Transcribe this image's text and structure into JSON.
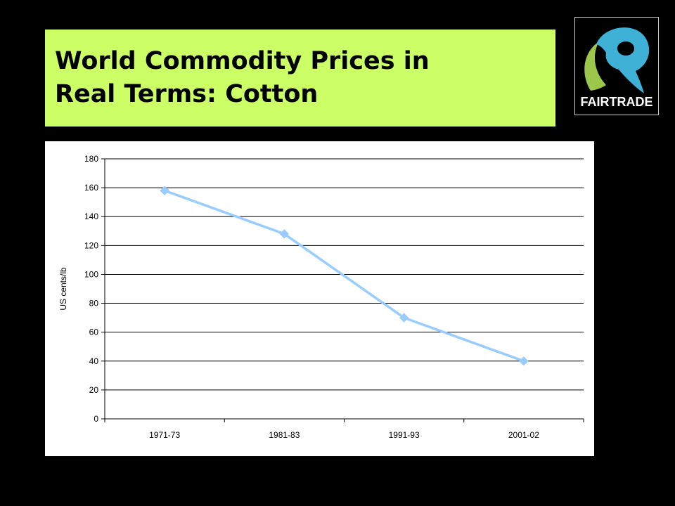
{
  "slide": {
    "title_line1": "World Commodity Prices in",
    "title_line2": "Real Terms: Cotton",
    "title_bg_color": "#ccff66",
    "background_color": "#000000"
  },
  "logo": {
    "label": "FAIRTRADE",
    "icon": "fairtrade-mark-icon",
    "colors": {
      "blue": "#3fb1d6",
      "green": "#9bc84a",
      "background": "#000000"
    }
  },
  "chart_data": {
    "type": "line",
    "categories": [
      "1971-73",
      "1981-83",
      "1991-93",
      "2001-02"
    ],
    "series": [
      {
        "values": [
          158,
          128,
          70,
          40
        ],
        "color": "#99ccff",
        "marker": "diamond"
      }
    ],
    "title": "",
    "xlabel": "",
    "ylabel": "US cents/lb",
    "ylim": [
      0,
      180
    ],
    "yticks": [
      0,
      20,
      40,
      60,
      80,
      100,
      120,
      140,
      160,
      180
    ],
    "grid": "horizontal",
    "legend": "none"
  }
}
